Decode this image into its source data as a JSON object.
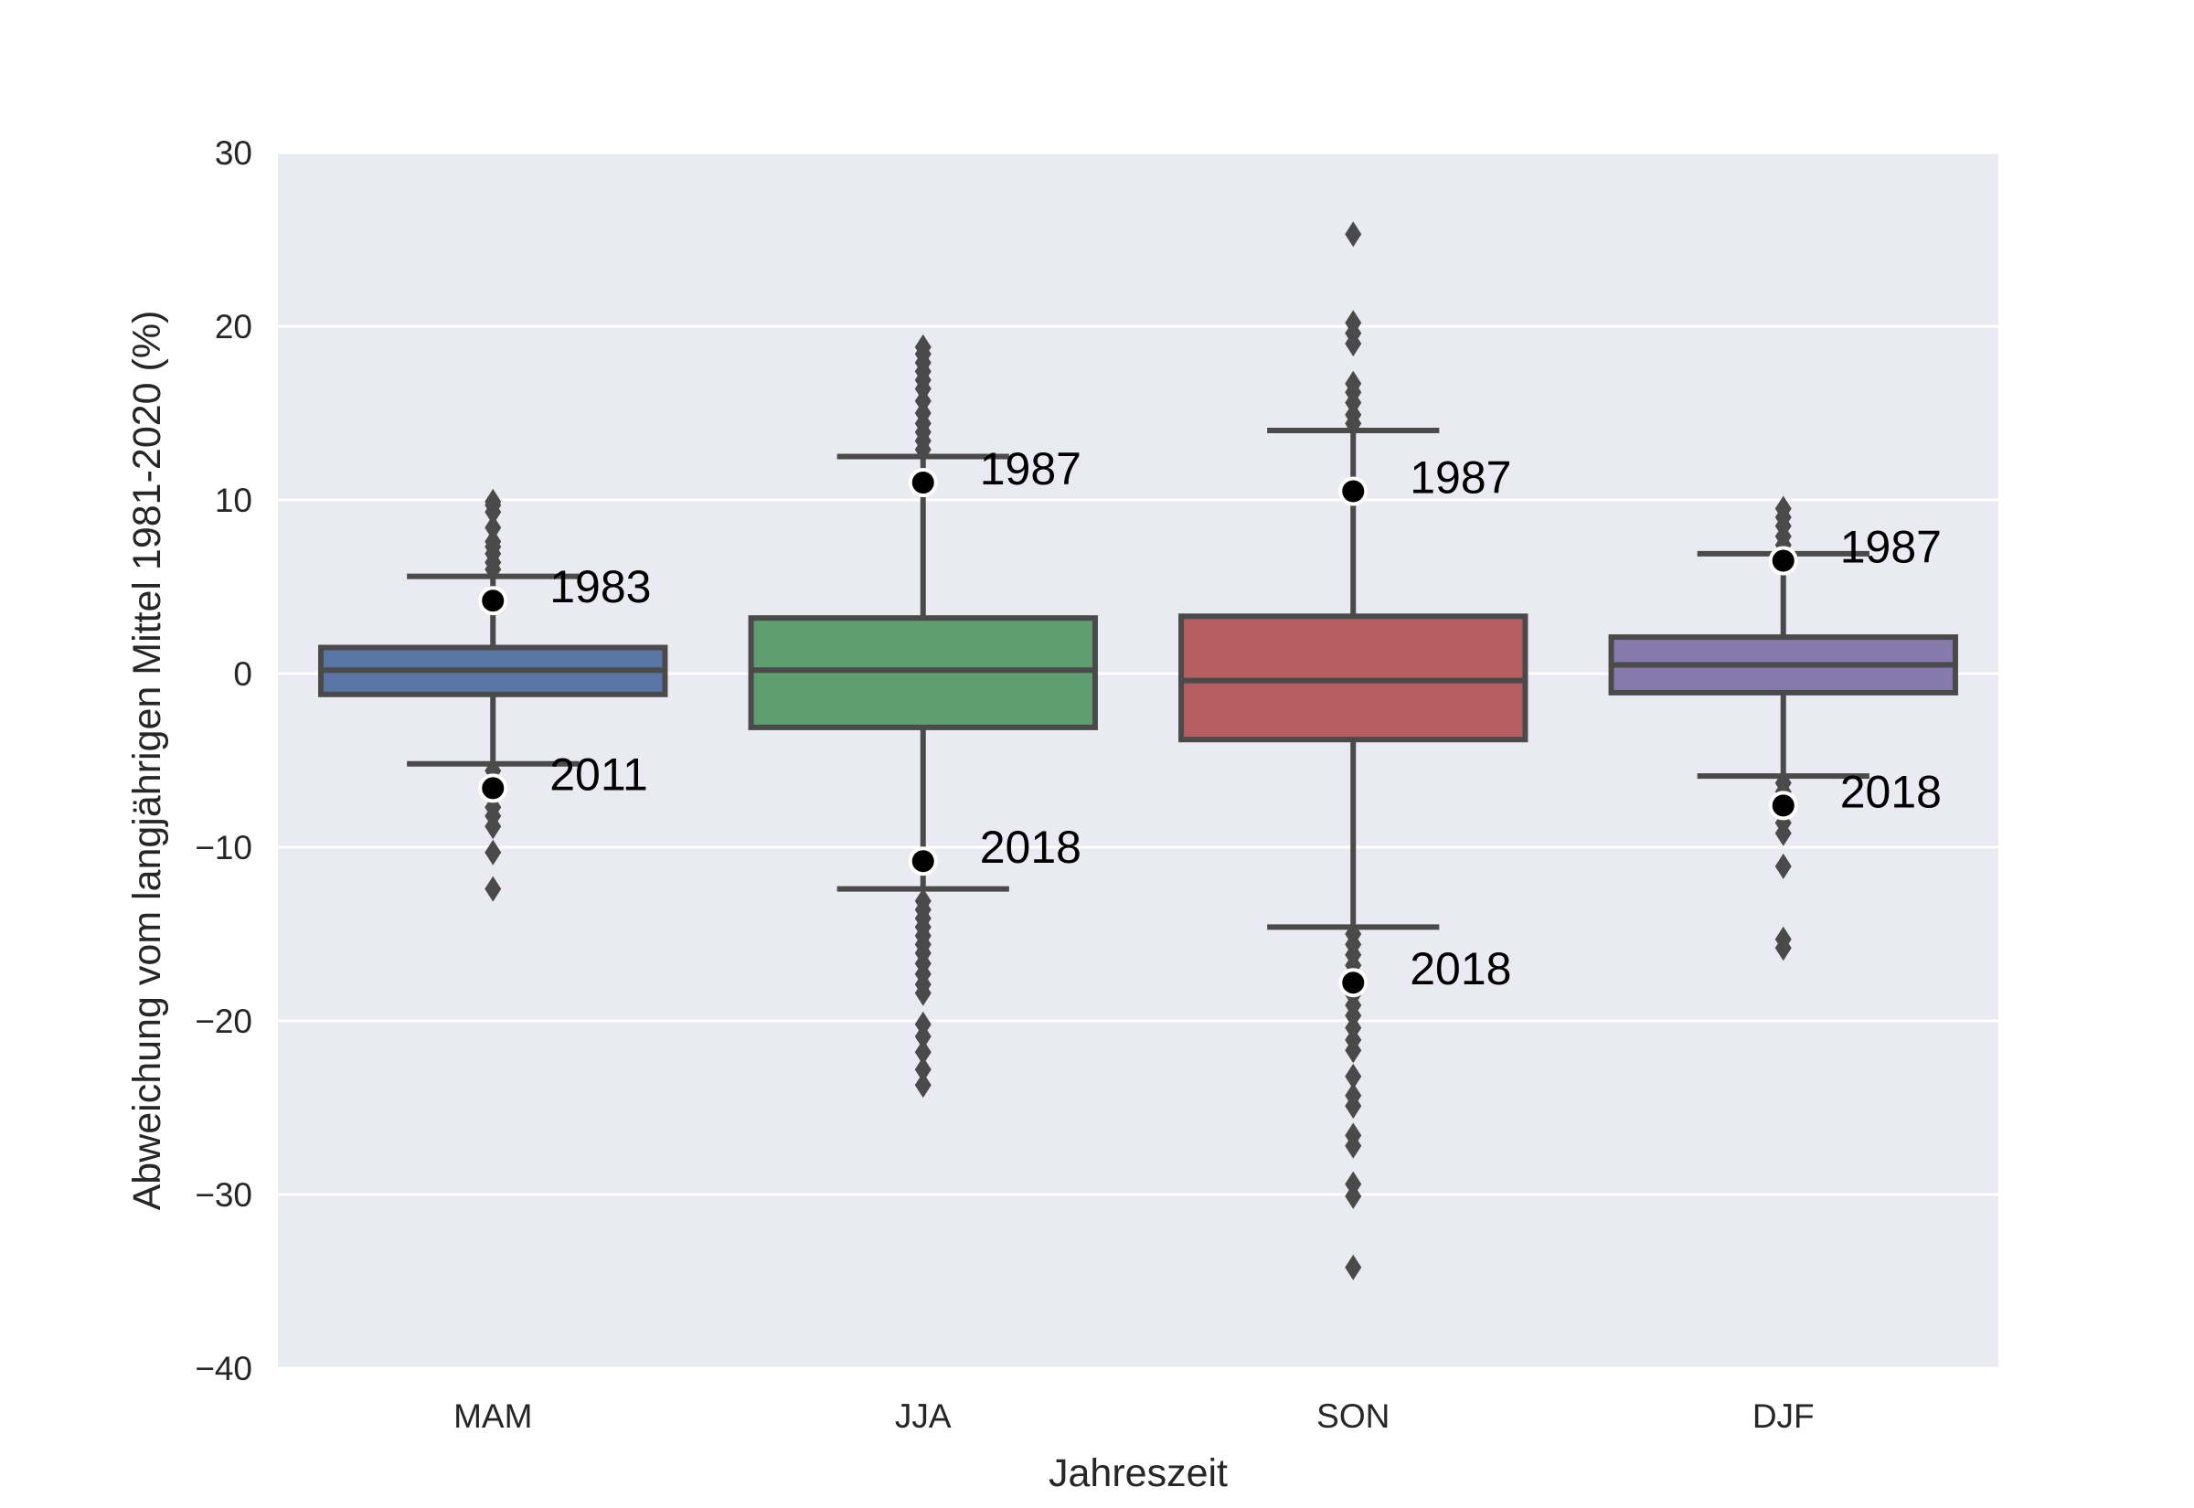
{
  "chart_data": {
    "type": "box",
    "xlabel": "Jahreszeit",
    "ylabel": "Abweichung vom langjährigen Mittel 1981-2020 (%)",
    "ylim": [
      -40,
      30
    ],
    "yticks": [
      -40,
      -30,
      -20,
      -10,
      0,
      10,
      20,
      30
    ],
    "ytick_labels": [
      "−40",
      "−30",
      "−20",
      "−10",
      "0",
      "10",
      "20",
      "30"
    ],
    "grid": true,
    "background": "#eaeaf2",
    "box_edge_color": "#4a4a4a",
    "categories": [
      "MAM",
      "JJA",
      "SON",
      "DJF"
    ],
    "boxes": [
      {
        "category": "MAM",
        "color": "#5875a4",
        "whisker_low": -5.2,
        "q1": -1.2,
        "median": 0.2,
        "q3": 1.5,
        "whisker_high": 5.6,
        "outliers": [
          6.0,
          6.4,
          6.9,
          7.3,
          7.6,
          8.4,
          9.3,
          9.7,
          9.9,
          -5.6,
          -6.2,
          -7.7,
          -8.2,
          -8.8,
          -10.3,
          -12.4
        ]
      },
      {
        "category": "JJA",
        "color": "#5f9e6e",
        "whisker_low": -12.4,
        "q1": -3.1,
        "median": 0.2,
        "q3": 3.2,
        "whisker_high": 12.5,
        "outliers": [
          12.9,
          13.4,
          13.9,
          14.4,
          15.0,
          15.7,
          16.4,
          16.9,
          17.4,
          17.9,
          18.4,
          18.8,
          -13.1,
          -13.6,
          -14.1,
          -14.6,
          -15.1,
          -15.6,
          -16.1,
          -16.7,
          -17.3,
          -17.9,
          -18.4,
          -20.2,
          -20.9,
          -21.8,
          -22.8,
          -23.7
        ]
      },
      {
        "category": "SON",
        "color": "#b55d60",
        "whisker_low": -14.6,
        "q1": -3.8,
        "median": -0.4,
        "q3": 3.3,
        "whisker_high": 14.0,
        "outliers": [
          14.4,
          14.9,
          15.6,
          16.2,
          16.7,
          19.0,
          19.6,
          20.2,
          25.3,
          -15.0,
          -15.6,
          -16.2,
          -16.8,
          -17.4,
          -18.5,
          -19.1,
          -19.7,
          -20.4,
          -21.1,
          -21.7,
          -23.2,
          -24.3,
          -24.9,
          -26.6,
          -27.2,
          -29.4,
          -30.1,
          -34.2
        ]
      },
      {
        "category": "DJF",
        "color": "#857aab",
        "whisker_low": -5.9,
        "q1": -1.1,
        "median": 0.5,
        "q3": 2.1,
        "whisker_high": 6.9,
        "outliers": [
          7.4,
          7.9,
          8.5,
          9.0,
          9.5,
          -6.3,
          -6.8,
          -7.3,
          -8.0,
          -8.6,
          -9.2,
          -11.1,
          -15.3,
          -15.8
        ]
      }
    ],
    "highlights": [
      {
        "category": "MAM",
        "year": "1983",
        "value": 4.2
      },
      {
        "category": "MAM",
        "year": "2011",
        "value": -6.6
      },
      {
        "category": "JJA",
        "year": "1987",
        "value": 11.0
      },
      {
        "category": "JJA",
        "year": "2018",
        "value": -10.8
      },
      {
        "category": "SON",
        "year": "1987",
        "value": 10.5
      },
      {
        "category": "SON",
        "year": "2018",
        "value": -17.8
      },
      {
        "category": "DJF",
        "year": "1987",
        "value": 6.5
      },
      {
        "category": "DJF",
        "year": "2018",
        "value": -7.6
      }
    ]
  }
}
